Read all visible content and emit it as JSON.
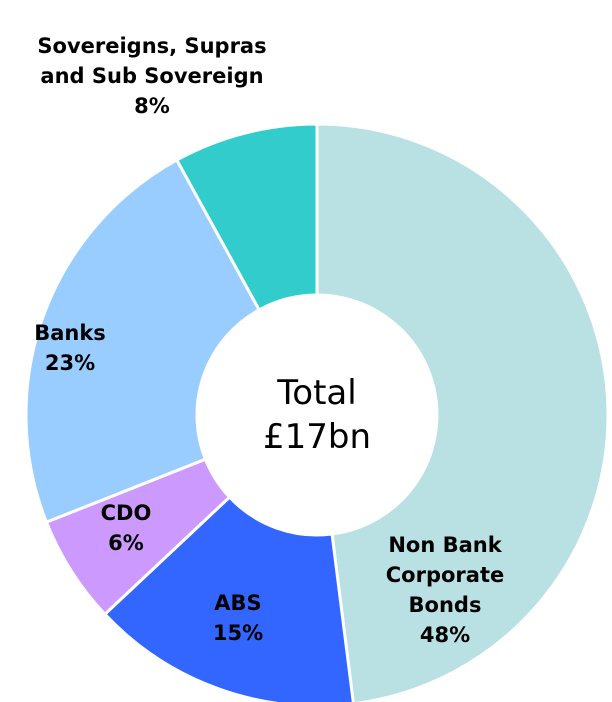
{
  "chart_data": {
    "type": "donut",
    "center_label": "Total £17bn",
    "categories": [
      "Non Bank Corporate Bonds",
      "ABS",
      "CDO",
      "Banks",
      "Sovereigns, Supras and Sub Sovereign"
    ],
    "values": [
      48,
      15,
      6,
      23,
      8
    ],
    "value_labels": [
      "48%",
      "15%",
      "6%",
      "23%",
      "8%"
    ],
    "colors": [
      "#b9e0e3",
      "#3366ff",
      "#cc99ff",
      "#99ccff",
      "#33cccc"
    ]
  }
}
